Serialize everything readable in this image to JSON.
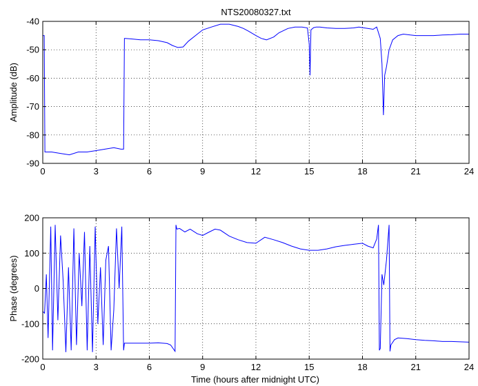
{
  "figure": {
    "title": "NTS20080327.txt",
    "xlabel": "Time (hours after midnight UTC)"
  },
  "chart_data": [
    {
      "type": "line",
      "title": "NTS20080327.txt",
      "xlabel": "",
      "ylabel": "Amplitude (dB)",
      "xlim": [
        0,
        24
      ],
      "ylim": [
        -90,
        -40
      ],
      "xticks": [
        0,
        3,
        6,
        9,
        12,
        15,
        18,
        21,
        24
      ],
      "yticks": [
        -90,
        -80,
        -70,
        -60,
        -50,
        -40
      ],
      "grid": "dotted",
      "line_color": "#0000ff",
      "series": [
        {
          "x": [
            0,
            0.08,
            0.12,
            0.15,
            0.5,
            1.0,
            1.5,
            2.0,
            2.5,
            3.0,
            3.5,
            4.0,
            4.4,
            4.55,
            4.6,
            4.65,
            5.0,
            5.5,
            6.0,
            6.5,
            7.0,
            7.3,
            7.6,
            7.9,
            8.2,
            8.6,
            9.0,
            9.5,
            10.0,
            10.5,
            11.0,
            11.3,
            11.6,
            12.0,
            12.3,
            12.6,
            13.0,
            13.3,
            13.8,
            14.2,
            14.6,
            14.9,
            15.0,
            15.05,
            15.1,
            15.25,
            15.4,
            15.6,
            16.0,
            16.5,
            17.0,
            17.5,
            17.8,
            18.0,
            18.3,
            18.6,
            18.8,
            19.0,
            19.1,
            19.18,
            19.25,
            19.35,
            19.5,
            19.7,
            20.0,
            20.3,
            20.7,
            21.0,
            21.5,
            22.0,
            22.5,
            23.0,
            23.5,
            24.0
          ],
          "y": [
            -45,
            -45,
            -86,
            -86,
            -86,
            -86.5,
            -87,
            -86,
            -86,
            -85.5,
            -85,
            -84.5,
            -85,
            -85,
            -46,
            -46,
            -46.2,
            -46.5,
            -46.5,
            -46.8,
            -47.5,
            -48.5,
            -49.2,
            -49,
            -47,
            -45,
            -43,
            -42,
            -41,
            -41,
            -41.8,
            -42.5,
            -43.5,
            -45,
            -46,
            -46.5,
            -45.5,
            -44,
            -42.5,
            -42,
            -42,
            -42.3,
            -48,
            -59,
            -43,
            -42.2,
            -42,
            -42,
            -42.3,
            -42.5,
            -42.5,
            -42.3,
            -42,
            -42.2,
            -42.5,
            -42.8,
            -42,
            -46,
            -55,
            -73,
            -59,
            -56,
            -50,
            -46.5,
            -45,
            -44.5,
            -44.8,
            -45,
            -45,
            -45,
            -44.8,
            -44.7,
            -44.5,
            -44.5
          ]
        }
      ]
    },
    {
      "type": "line",
      "title": "",
      "xlabel": "Time (hours after midnight UTC)",
      "ylabel": "Phase (degrees)",
      "xlim": [
        0,
        24
      ],
      "ylim": [
        -200,
        200
      ],
      "xticks": [
        0,
        3,
        6,
        9,
        12,
        15,
        18,
        21,
        24
      ],
      "yticks": [
        -200,
        -100,
        0,
        100,
        200
      ],
      "grid": "dotted",
      "line_color": "#0000ff",
      "series": [
        {
          "x": [
            0,
            0.1,
            0.2,
            0.3,
            0.45,
            0.55,
            0.7,
            0.85,
            1.0,
            1.15,
            1.3,
            1.45,
            1.6,
            1.75,
            1.9,
            2.05,
            2.2,
            2.35,
            2.5,
            2.65,
            2.8,
            2.95,
            3.1,
            3.25,
            3.4,
            3.55,
            3.7,
            3.85,
            4.0,
            4.15,
            4.3,
            4.45,
            4.55,
            4.6,
            4.7,
            5.0,
            5.5,
            6.0,
            6.5,
            7.0,
            7.2,
            7.45,
            7.5,
            7.55,
            7.7,
            8.0,
            8.3,
            8.7,
            9.0,
            9.3,
            9.7,
            10.0,
            10.5,
            11.0,
            11.5,
            12.0,
            12.5,
            13.0,
            13.5,
            14.0,
            14.5,
            15.0,
            15.5,
            16.0,
            16.5,
            17.0,
            17.5,
            18.0,
            18.3,
            18.6,
            18.8,
            18.9,
            18.95,
            19.0,
            19.1,
            19.2,
            19.35,
            19.5,
            19.55,
            19.6,
            19.8,
            20.0,
            20.5,
            21.0,
            21.5,
            22.0,
            22.5,
            23.0,
            23.5,
            24.0
          ],
          "y": [
            -65,
            -70,
            40,
            -140,
            175,
            -175,
            180,
            -90,
            150,
            20,
            -180,
            60,
            -175,
            170,
            -160,
            100,
            -50,
            160,
            -175,
            120,
            -180,
            175,
            -100,
            60,
            -160,
            80,
            120,
            -175,
            -60,
            170,
            0,
            175,
            -175,
            -155,
            -155,
            -155,
            -155,
            -155,
            -154,
            -156,
            -160,
            -178,
            180,
            168,
            170,
            160,
            168,
            155,
            150,
            158,
            168,
            165,
            148,
            138,
            130,
            128,
            145,
            138,
            130,
            120,
            112,
            108,
            108,
            112,
            118,
            122,
            125,
            128,
            120,
            115,
            140,
            180,
            -175,
            -170,
            40,
            10,
            80,
            180,
            -178,
            -160,
            -145,
            -140,
            -142,
            -145,
            -147,
            -148,
            -150,
            -150,
            -151,
            -152
          ]
        }
      ]
    }
  ]
}
